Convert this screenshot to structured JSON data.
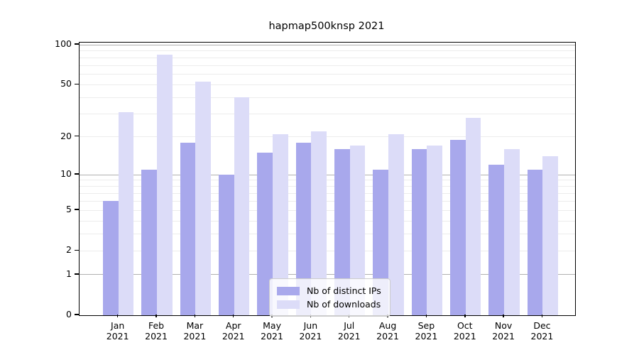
{
  "figure": {
    "background": "#ffffff",
    "text_color": "#000000"
  },
  "chart_data": {
    "type": "bar",
    "title": "hapmap500knsp 2021",
    "scale": "log1p",
    "ylim": [
      0,
      100
    ],
    "grid": "horizontal",
    "legend_position": "bottom-center",
    "categories": [
      {
        "line1": "Jan",
        "line2": "2021"
      },
      {
        "line1": "Feb",
        "line2": "2021"
      },
      {
        "line1": "Mar",
        "line2": "2021"
      },
      {
        "line1": "Apr",
        "line2": "2021"
      },
      {
        "line1": "May",
        "line2": "2021"
      },
      {
        "line1": "Jun",
        "line2": "2021"
      },
      {
        "line1": "Jul",
        "line2": "2021"
      },
      {
        "line1": "Aug",
        "line2": "2021"
      },
      {
        "line1": "Sep",
        "line2": "2021"
      },
      {
        "line1": "Oct",
        "line2": "2021"
      },
      {
        "line1": "Nov",
        "line2": "2021"
      },
      {
        "line1": "Dec",
        "line2": "2021"
      }
    ],
    "series": [
      {
        "name": "Nb of distinct IPs",
        "color": "#a8a8ec",
        "values": [
          6,
          11,
          18,
          10,
          15,
          18,
          16,
          11,
          16,
          19,
          12,
          11
        ]
      },
      {
        "name": "Nb of downloads",
        "color": "#dcdcf8",
        "values": [
          31,
          84,
          53,
          40,
          21,
          22,
          17,
          21,
          17,
          28,
          16,
          14
        ]
      }
    ],
    "yticks": [
      0,
      1,
      2,
      5,
      10,
      20,
      50,
      100
    ],
    "major_gridlines": [
      1,
      10,
      100
    ],
    "minor_gridlines": [
      2,
      3,
      4,
      5,
      6,
      7,
      8,
      9,
      20,
      30,
      40,
      50,
      60,
      70,
      80,
      90
    ],
    "colors": {
      "major_grid": "#b0b0b0",
      "minor_grid": "#ececec",
      "spine": "#000000",
      "legend_border": "#cccccc"
    }
  }
}
